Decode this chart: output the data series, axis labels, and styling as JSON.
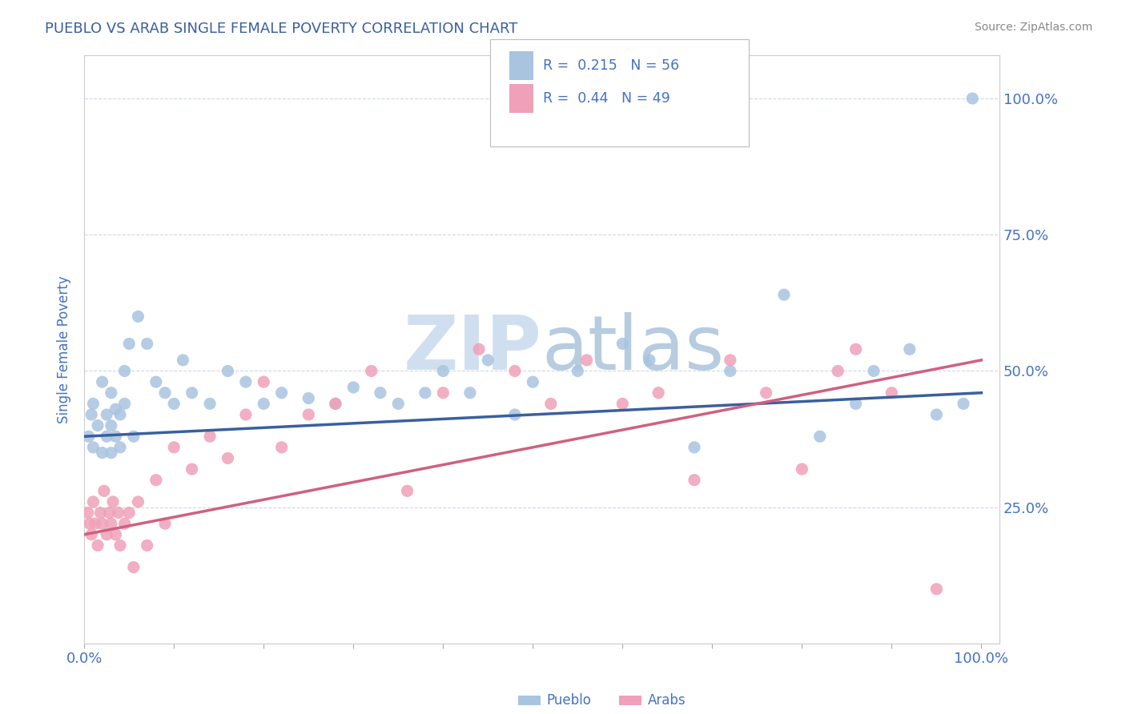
{
  "title": "PUEBLO VS ARAB SINGLE FEMALE POVERTY CORRELATION CHART",
  "source": "Source: ZipAtlas.com",
  "ylabel": "Single Female Poverty",
  "pueblo_R": 0.215,
  "pueblo_N": 56,
  "arab_R": 0.44,
  "arab_N": 49,
  "pueblo_color": "#a8c4e0",
  "arab_color": "#f0a0b8",
  "pueblo_line_color": "#3a5fa0",
  "arab_line_color": "#d06080",
  "title_color": "#3a5fa0",
  "axis_label_color": "#4472c4",
  "watermark_color": "#d0dff0",
  "ytick_positions": [
    0.0,
    0.25,
    0.5,
    0.75,
    1.0
  ],
  "ytick_labels": [
    "",
    "25.0%",
    "50.0%",
    "75.0%",
    "100.0%"
  ],
  "pueblo_x": [
    0.005,
    0.008,
    0.01,
    0.01,
    0.015,
    0.02,
    0.02,
    0.025,
    0.025,
    0.03,
    0.03,
    0.03,
    0.035,
    0.035,
    0.04,
    0.04,
    0.045,
    0.045,
    0.05,
    0.055,
    0.06,
    0.07,
    0.08,
    0.09,
    0.1,
    0.11,
    0.12,
    0.14,
    0.16,
    0.18,
    0.2,
    0.22,
    0.25,
    0.28,
    0.3,
    0.33,
    0.35,
    0.38,
    0.4,
    0.43,
    0.45,
    0.48,
    0.5,
    0.55,
    0.6,
    0.63,
    0.68,
    0.72,
    0.78,
    0.82,
    0.86,
    0.88,
    0.92,
    0.95,
    0.98,
    0.99
  ],
  "pueblo_y": [
    0.38,
    0.42,
    0.36,
    0.44,
    0.4,
    0.35,
    0.48,
    0.38,
    0.42,
    0.35,
    0.4,
    0.46,
    0.38,
    0.43,
    0.36,
    0.42,
    0.5,
    0.44,
    0.55,
    0.38,
    0.6,
    0.55,
    0.48,
    0.46,
    0.44,
    0.52,
    0.46,
    0.44,
    0.5,
    0.48,
    0.44,
    0.46,
    0.45,
    0.44,
    0.47,
    0.46,
    0.44,
    0.46,
    0.5,
    0.46,
    0.52,
    0.42,
    0.48,
    0.5,
    0.55,
    0.52,
    0.36,
    0.5,
    0.64,
    0.38,
    0.44,
    0.5,
    0.54,
    0.42,
    0.44,
    1.0
  ],
  "arab_x": [
    0.004,
    0.006,
    0.008,
    0.01,
    0.012,
    0.015,
    0.018,
    0.02,
    0.022,
    0.025,
    0.028,
    0.03,
    0.032,
    0.035,
    0.038,
    0.04,
    0.045,
    0.05,
    0.055,
    0.06,
    0.07,
    0.08,
    0.09,
    0.1,
    0.12,
    0.14,
    0.16,
    0.18,
    0.2,
    0.22,
    0.25,
    0.28,
    0.32,
    0.36,
    0.4,
    0.44,
    0.48,
    0.52,
    0.56,
    0.6,
    0.64,
    0.68,
    0.72,
    0.76,
    0.8,
    0.84,
    0.86,
    0.9,
    0.95
  ],
  "arab_y": [
    0.24,
    0.22,
    0.2,
    0.26,
    0.22,
    0.18,
    0.24,
    0.22,
    0.28,
    0.2,
    0.24,
    0.22,
    0.26,
    0.2,
    0.24,
    0.18,
    0.22,
    0.24,
    0.14,
    0.26,
    0.18,
    0.3,
    0.22,
    0.36,
    0.32,
    0.38,
    0.34,
    0.42,
    0.48,
    0.36,
    0.42,
    0.44,
    0.5,
    0.28,
    0.46,
    0.54,
    0.5,
    0.44,
    0.52,
    0.44,
    0.46,
    0.3,
    0.52,
    0.46,
    0.32,
    0.5,
    0.54,
    0.46,
    0.1
  ]
}
